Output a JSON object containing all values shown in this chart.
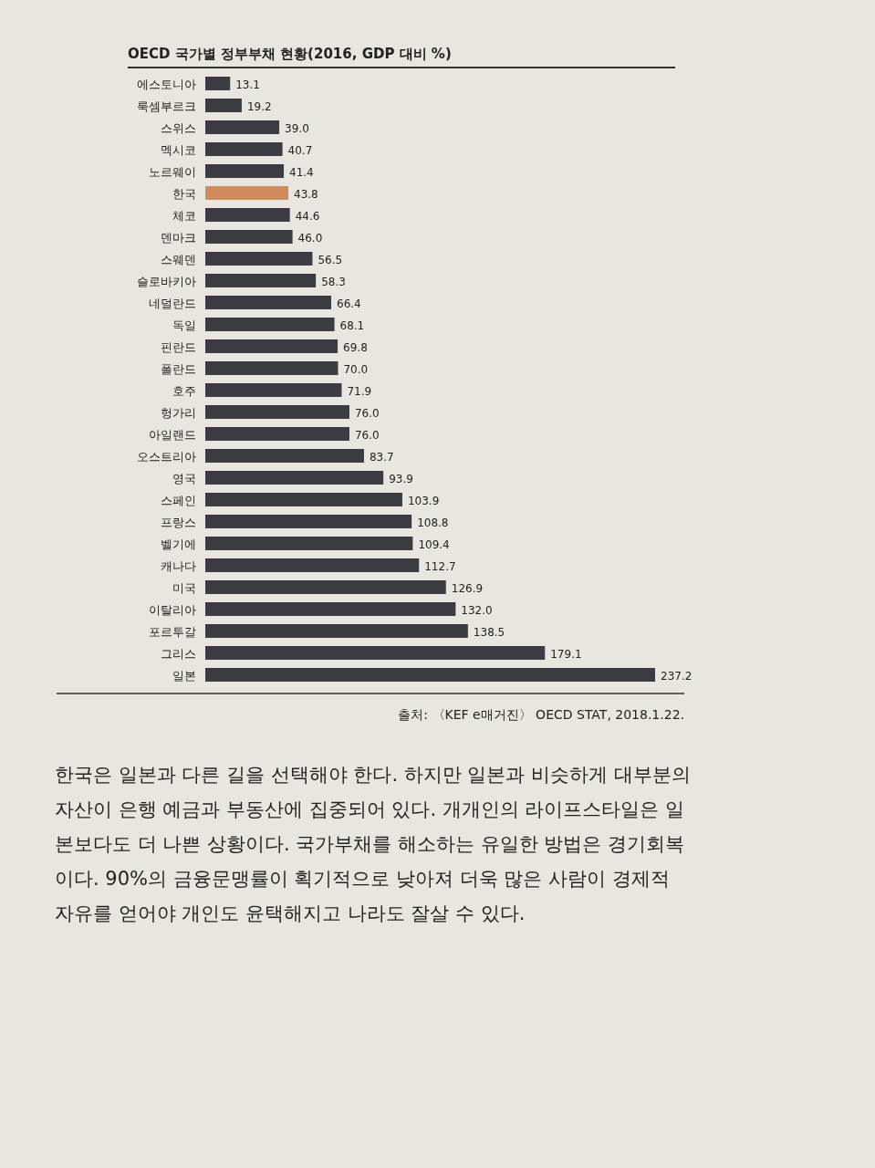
{
  "chart_data": {
    "type": "bar",
    "orientation": "horizontal",
    "title": "OECD 국가별 정부부채 현황(2016, GDP 대비 %)",
    "categories": [
      "에스토니아",
      "룩셈부르크",
      "스위스",
      "멕시코",
      "노르웨이",
      "한국",
      "체코",
      "덴마크",
      "스웨덴",
      "슬로바키아",
      "네덜란드",
      "독일",
      "핀란드",
      "폴란드",
      "호주",
      "헝가리",
      "아일랜드",
      "오스트리아",
      "영국",
      "스페인",
      "프랑스",
      "벨기에",
      "캐나다",
      "미국",
      "이탈리아",
      "포르투갈",
      "그리스",
      "일본"
    ],
    "values": [
      13.1,
      19.2,
      39.0,
      40.7,
      41.4,
      43.8,
      44.6,
      46.0,
      56.5,
      58.3,
      66.4,
      68.1,
      69.8,
      70.0,
      71.9,
      76.0,
      76.0,
      83.7,
      93.9,
      103.9,
      108.8,
      109.4,
      112.7,
      126.9,
      132.0,
      138.5,
      179.1,
      237.2
    ],
    "colors": [
      "#3b3d43",
      "#3b3d43",
      "#3b3d43",
      "#3b3d43",
      "#3b3d43",
      "#cf8a5e",
      "#3b3d43",
      "#3b3d43",
      "#3b3d43",
      "#3b3d43",
      "#3b3d43",
      "#3b3d43",
      "#3b3d43",
      "#3b3d43",
      "#3b3d43",
      "#3b3d43",
      "#3b3d43",
      "#3b3d43",
      "#3b3d43",
      "#3b3d43",
      "#3b3d43",
      "#3b3d43",
      "#3b3d43",
      "#3b3d43",
      "#3b3d43",
      "#3b3d43",
      "#3b3d43",
      "#3b3d43"
    ],
    "value_labels": [
      "13.1",
      "19.2",
      "39.0",
      "40.7",
      "41.4",
      "43.8",
      "44.6",
      "46.0",
      "56.5",
      "58.3",
      "66.4",
      "68.1",
      "69.8",
      "70.0",
      "71.9",
      "76.0",
      "76.0",
      "83.7",
      "93.9",
      "103.9",
      "108.8",
      "109.4",
      "112.7",
      "126.9",
      "132.0",
      "138.5",
      "179.1",
      "237.2"
    ],
    "annotations": [
      "출처: 〈KEF e매거진〉 OECD STAT, 2018.1.22.",
      "한국은 일본과 다른 길을 선택해야 한다. 하지만 일본과 비슷하게 대부분의 자산이 은행 예금과 부동산에 집중되어 있다. 개개인의 라이프스타일은 일본보다도 더 나쁜 상황이다. 국가부채를 해소하는 유일한 방법은 경기회복이다. 90%의 금융문맹률이 획기적으로 낮아져 더욱 많은 사람이 경제적 자유를 얻어야 개인도 윤택해지고 나라도 잘살 수 있다."
    ]
  }
}
